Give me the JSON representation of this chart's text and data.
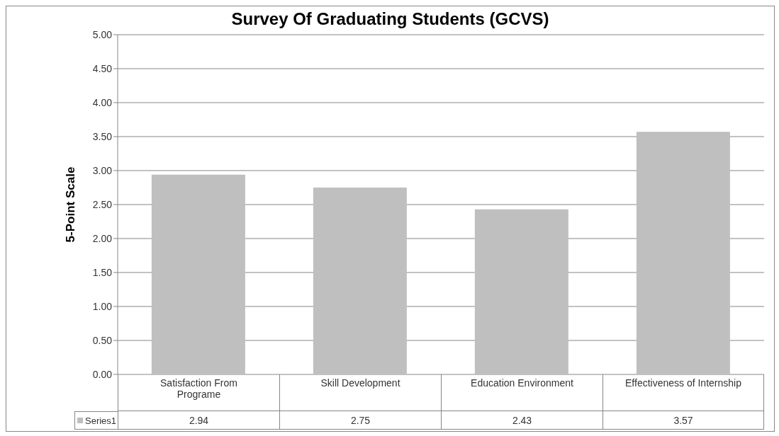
{
  "chart_data": {
    "type": "bar",
    "title": "Survey Of Graduating Students (GCVS)",
    "ylabel": "5-Point Scale",
    "categories": [
      "Satisfaction From Programe",
      "Skill Development",
      "Education Environment",
      "Effectiveness of Internship"
    ],
    "series": [
      {
        "name": "Series1",
        "color": "#bfbfbf",
        "values": [
          2.94,
          2.75,
          2.43,
          3.57
        ]
      }
    ],
    "ylim": [
      0,
      5
    ],
    "yticks": [
      {
        "value": 0,
        "label": "0.00"
      },
      {
        "value": 0.5,
        "label": "0.50"
      },
      {
        "value": 1,
        "label": "1.00"
      },
      {
        "value": 1.5,
        "label": "1.50"
      },
      {
        "value": 2,
        "label": "2.00"
      },
      {
        "value": 2.5,
        "label": "2.50"
      },
      {
        "value": 3,
        "label": "3.00"
      },
      {
        "value": 3.5,
        "label": "3.50"
      },
      {
        "value": 4,
        "label": "4.00"
      },
      {
        "value": 4.5,
        "label": "4.50"
      },
      {
        "value": 5,
        "label": "5.00"
      }
    ],
    "grid": "y",
    "legend": "bottom",
    "data_labels": true
  }
}
